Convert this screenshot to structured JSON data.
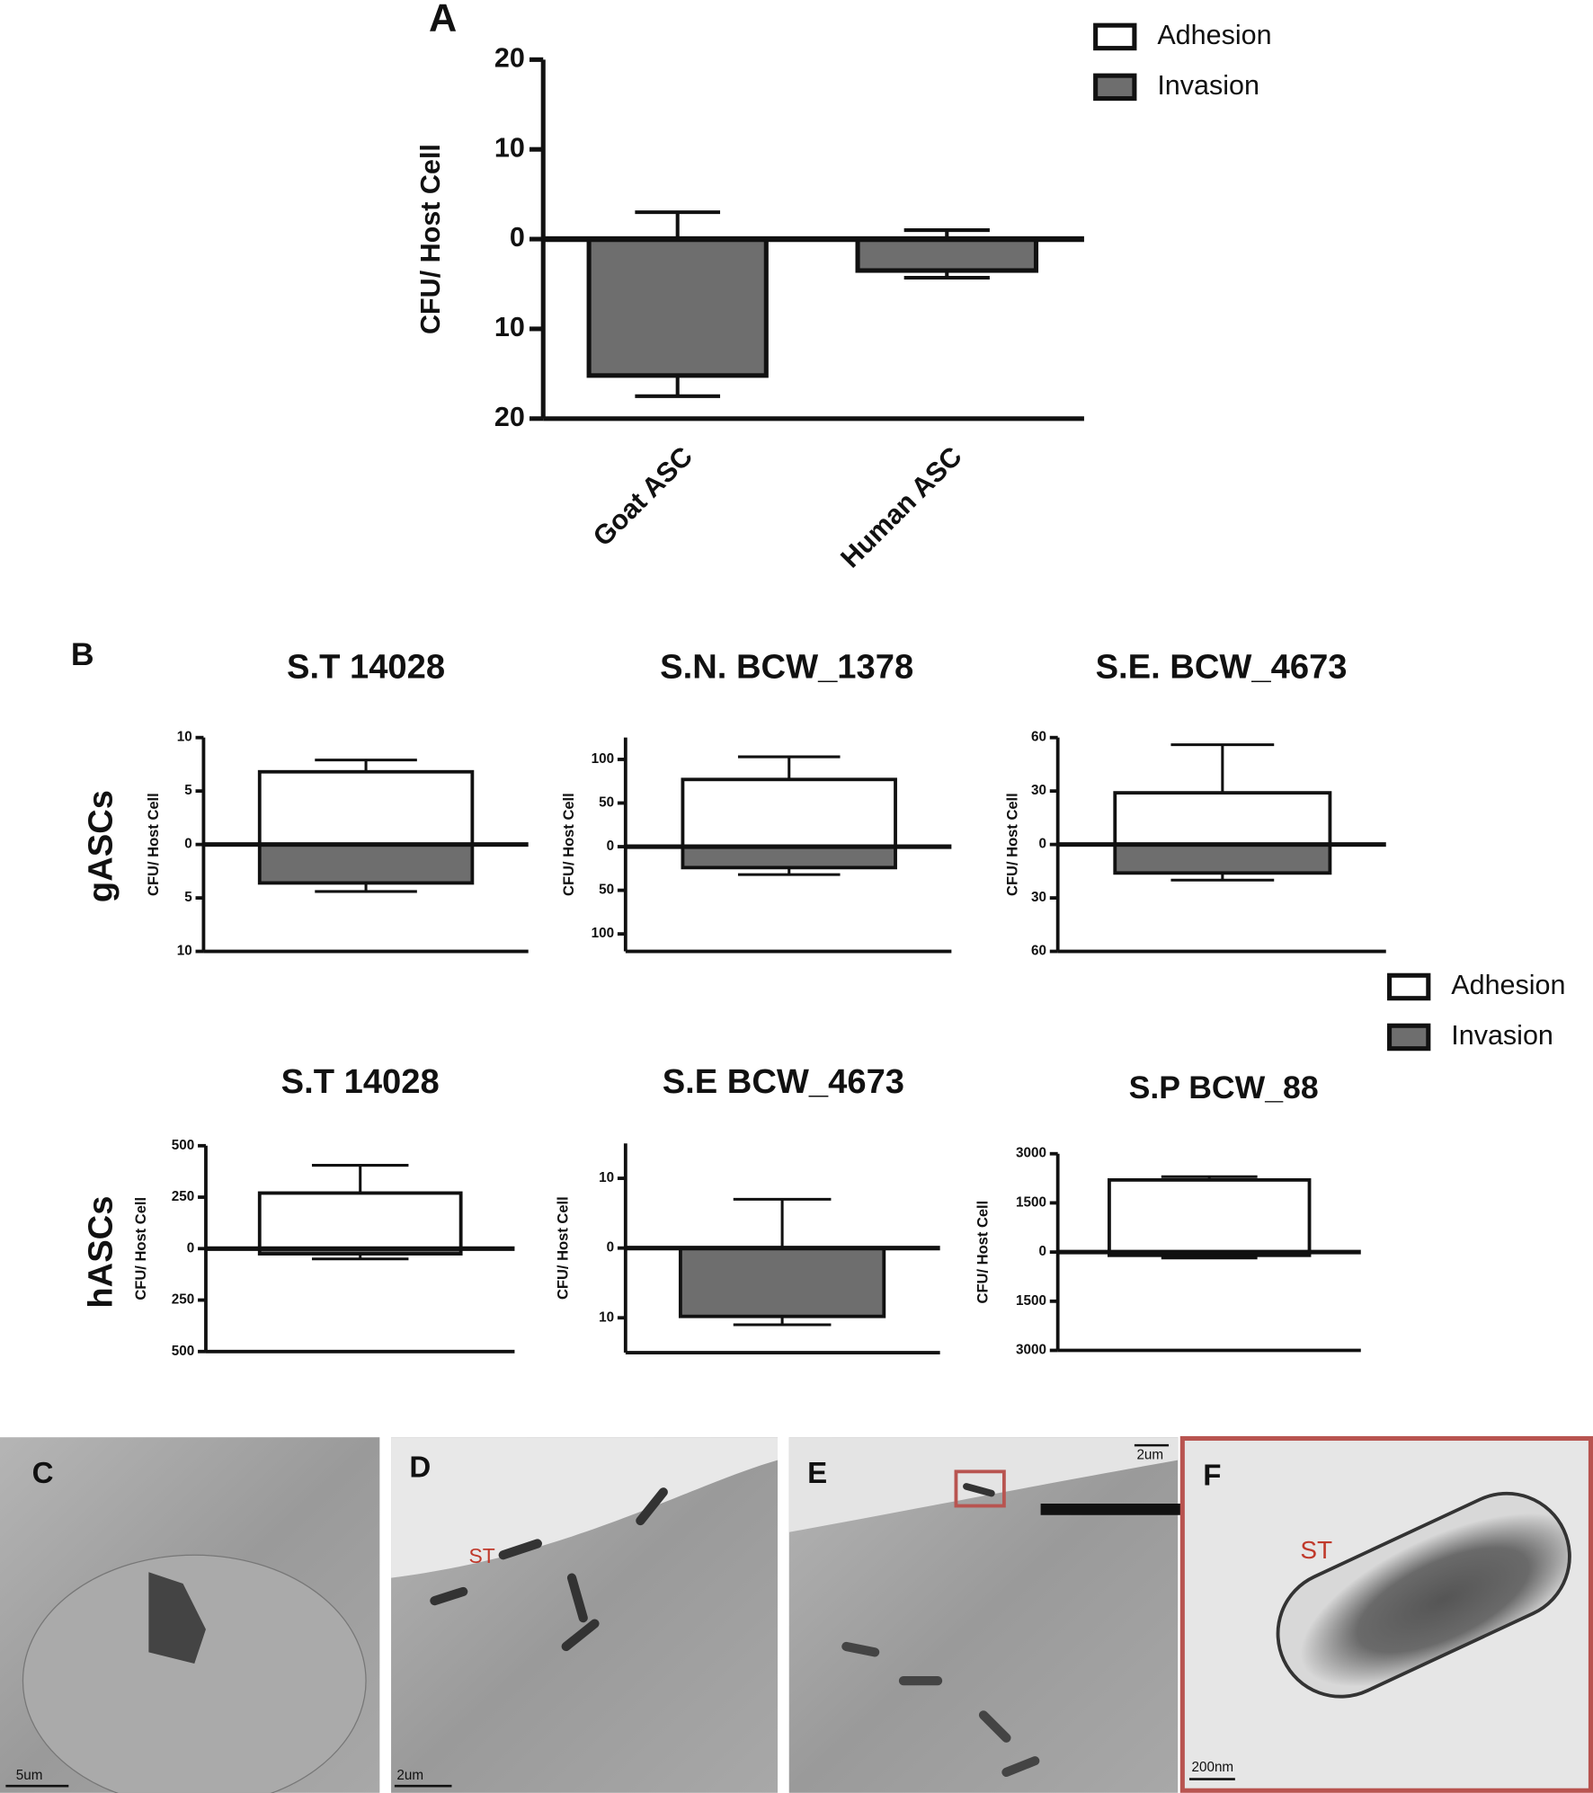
{
  "panel_label": "B",
  "row_labels": [
    "gASCs",
    "hASCs"
  ],
  "chart_data": [
    {
      "type": "bar",
      "title": "A",
      "ylabel": "CFU/ Host Cell",
      "categories": [
        "Goat  ASC",
        "Human ASC"
      ],
      "series": [
        {
          "name": "Adhesion",
          "color": "#ffffff",
          "values": [
            0,
            0
          ],
          "errors": [
            3,
            1
          ]
        },
        {
          "name": "Invasion",
          "color": "#6e6e6e",
          "values": [
            -15.2,
            -3.5
          ],
          "errors": [
            2.3,
            0.8
          ]
        }
      ],
      "ylim": [
        -20,
        20
      ],
      "yticks": [
        {
          "value": -20,
          "label": "20"
        },
        {
          "value": -10,
          "label": "10"
        },
        0,
        10,
        20
      ],
      "legend": "top-right"
    },
    {
      "type": "bar",
      "title": "S.T 14028",
      "ylabel": "CFU/ Host Cell",
      "categories": [
        null
      ],
      "series": [
        {
          "name": "Adhesion",
          "color": "#ffffff",
          "values": [
            6.8
          ],
          "errors": [
            1.1
          ]
        },
        {
          "name": "Invasion",
          "color": "#6e6e6e",
          "values": [
            -3.6
          ],
          "errors": [
            0.8
          ]
        }
      ],
      "ylim": [
        -10,
        10
      ],
      "yticks": [
        {
          "value": -10,
          "label": "10"
        },
        {
          "value": -5,
          "label": "5"
        },
        0,
        5,
        10
      ]
    },
    {
      "type": "bar",
      "title": "S.N. BCW_1378",
      "ylabel": "CFU/ Host Cell",
      "categories": [
        null
      ],
      "series": [
        {
          "name": "Adhesion",
          "color": "#ffffff",
          "values": [
            77
          ],
          "errors": [
            26
          ]
        },
        {
          "name": "Invasion",
          "color": "#6e6e6e",
          "values": [
            -24
          ],
          "errors": [
            8
          ]
        }
      ],
      "ylim": [
        -120,
        125
      ],
      "yticks": [
        {
          "value": -100,
          "label": "100"
        },
        {
          "value": -50,
          "label": "50"
        },
        0,
        50,
        100
      ]
    },
    {
      "type": "bar",
      "title": "S.E. BCW_4673",
      "ylabel": "CFU/ Host Cell",
      "categories": [
        null
      ],
      "series": [
        {
          "name": "Adhesion",
          "color": "#ffffff",
          "values": [
            29
          ],
          "errors": [
            27
          ]
        },
        {
          "name": "Invasion",
          "color": "#6e6e6e",
          "values": [
            -16
          ],
          "errors": [
            4
          ]
        }
      ],
      "ylim": [
        -60,
        60
      ],
      "yticks": [
        {
          "value": -60,
          "label": "60"
        },
        {
          "value": -30,
          "label": "30"
        },
        0,
        30,
        60
      ],
      "legend": "below-right"
    },
    {
      "type": "bar",
      "title": "S.T 14028",
      "ylabel": "CFU/ Host Cell",
      "categories": [
        null
      ],
      "series": [
        {
          "name": "Adhesion",
          "color": "#ffffff",
          "values": [
            270
          ],
          "errors": [
            135
          ]
        },
        {
          "name": "Invasion",
          "color": "#6e6e6e",
          "values": [
            -25
          ],
          "errors": [
            25
          ]
        }
      ],
      "ylim": [
        -500,
        500
      ],
      "yticks": [
        {
          "value": -500,
          "label": "500"
        },
        {
          "value": -250,
          "label": "250"
        },
        0,
        250,
        500
      ]
    },
    {
      "type": "bar",
      "title": "S.E BCW_4673",
      "ylabel": "CFU/ Host Cell",
      "categories": [
        null
      ],
      "series": [
        {
          "name": "Adhesion",
          "color": "#ffffff",
          "values": [
            0
          ],
          "errors": [
            7
          ]
        },
        {
          "name": "Invasion",
          "color": "#6e6e6e",
          "values": [
            -9.8
          ],
          "errors": [
            1.2
          ]
        }
      ],
      "ylim": [
        -15,
        15
      ],
      "yticks": [
        {
          "value": -10,
          "label": "10"
        },
        0,
        10
      ]
    },
    {
      "type": "bar",
      "title": "S.P BCW_88",
      "ylabel": "CFU/ Host Cell",
      "categories": [
        null
      ],
      "series": [
        {
          "name": "Adhesion",
          "color": "#ffffff",
          "values": [
            2200
          ],
          "errors": [
            100
          ]
        },
        {
          "name": "Invasion",
          "color": "#6e6e6e",
          "values": [
            -100
          ],
          "errors": [
            80
          ]
        }
      ],
      "ylim": [
        -3000,
        3000
      ],
      "yticks": [
        {
          "value": -3000,
          "label": "3000"
        },
        {
          "value": -1500,
          "label": "1500"
        },
        0,
        1500,
        3000
      ]
    }
  ],
  "micrographs": [
    {
      "label": "C",
      "scale_bar": "5um"
    },
    {
      "label": "D",
      "scale_bar": "2um",
      "annotation": "ST"
    },
    {
      "label": "E",
      "scale_bar": "2um"
    },
    {
      "label": "F",
      "scale_bar": "200nm",
      "annotation": "ST"
    }
  ]
}
